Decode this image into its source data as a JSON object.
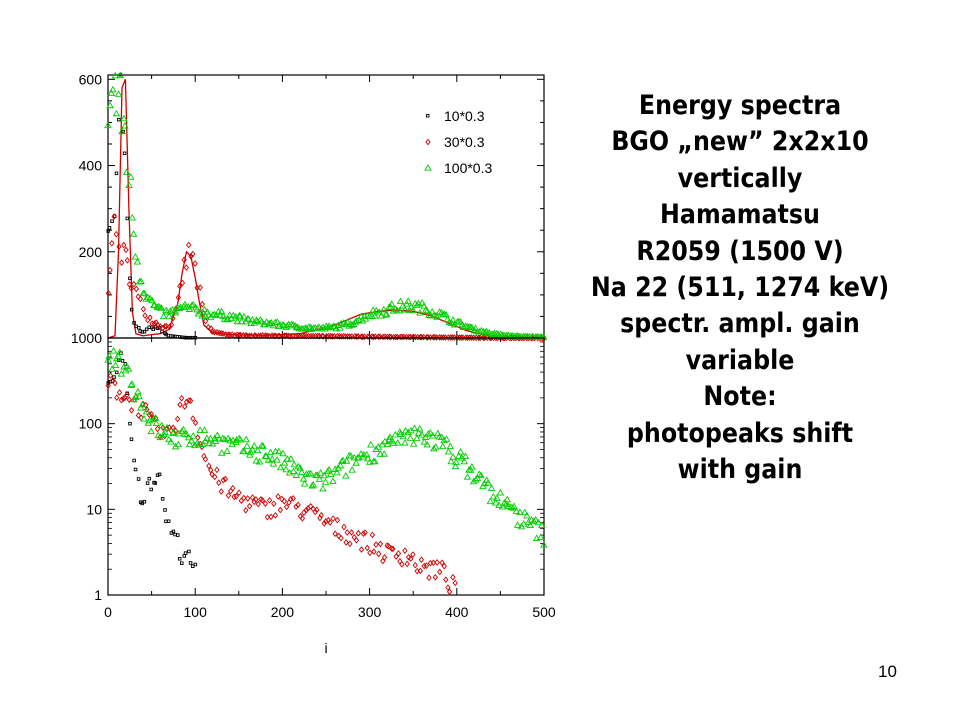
{
  "slide": {
    "number": "10",
    "text_lines": [
      "Energy spectra",
      "BGO „new” 2x2x10",
      "vertically",
      "Hamamatsu",
      "R2059 (1500 V)",
      "Na 22 (511, 1274 keV)",
      "spectr. ampl. gain",
      "variable",
      "Note:",
      "photopeaks shift",
      "with gain"
    ]
  },
  "chart_data": [
    {
      "type": "scatter",
      "scale": "linear",
      "xlabel": "",
      "ylabel": "",
      "xlim": [
        0,
        500
      ],
      "ylim": [
        0,
        610
      ],
      "yticks": [
        200,
        400,
        600
      ],
      "grid": false,
      "legend_position": "top-right",
      "series": [
        {
          "name": "10*0.3",
          "marker": "square",
          "color": "#000000",
          "x": [
            0,
            5,
            10,
            15,
            20,
            25,
            30,
            35,
            40,
            45,
            50,
            55,
            60,
            65,
            70,
            80,
            90,
            100
          ],
          "y": [
            300,
            250,
            350,
            600,
            400,
            120,
            30,
            20,
            12,
            20,
            22,
            25,
            20,
            10,
            5,
            2,
            0,
            0
          ]
        },
        {
          "name": "30*0.3",
          "marker": "diamond",
          "color": "#cc0000",
          "x": [
            0,
            5,
            10,
            15,
            20,
            25,
            30,
            35,
            40,
            45,
            50,
            55,
            60,
            65,
            70,
            75,
            80,
            85,
            90,
            95,
            100,
            105,
            110,
            115,
            120,
            130,
            150,
            200,
            250,
            300,
            350,
            400,
            450,
            500
          ],
          "y": [
            120,
            250,
            230,
            200,
            180,
            150,
            120,
            90,
            70,
            50,
            40,
            35,
            30,
            25,
            30,
            40,
            80,
            140,
            180,
            200,
            160,
            100,
            50,
            25,
            15,
            10,
            6,
            5,
            4,
            3,
            2,
            1,
            0,
            0
          ]
        },
        {
          "name": "100*0.3",
          "marker": "triangle",
          "color": "#00cc00",
          "x": [
            0,
            5,
            10,
            15,
            20,
            25,
            30,
            35,
            40,
            45,
            50,
            60,
            70,
            80,
            90,
            100,
            120,
            140,
            160,
            180,
            200,
            220,
            240,
            260,
            280,
            300,
            320,
            340,
            360,
            380,
            400,
            420,
            440,
            460,
            480,
            500
          ],
          "y": [
            500,
            580,
            560,
            520,
            480,
            350,
            250,
            160,
            120,
            100,
            80,
            60,
            55,
            65,
            70,
            65,
            55,
            50,
            40,
            35,
            30,
            25,
            22,
            25,
            35,
            55,
            65,
            75,
            70,
            55,
            35,
            20,
            10,
            5,
            3,
            2
          ]
        }
      ],
      "fit_curve": {
        "color": "#cc0000",
        "x": [
          0,
          8,
          12,
          16,
          20,
          24,
          28,
          32,
          40,
          50,
          60,
          70,
          80,
          85,
          90,
          95,
          100,
          105,
          110,
          120,
          140,
          180,
          220,
          260,
          290,
          310,
          330,
          350,
          370,
          390,
          410,
          430,
          460,
          500
        ],
        "y": [
          0,
          5,
          200,
          580,
          600,
          300,
          60,
          10,
          5,
          8,
          10,
          20,
          80,
          150,
          200,
          190,
          140,
          80,
          30,
          12,
          8,
          6,
          10,
          30,
          55,
          62,
          65,
          62,
          52,
          35,
          18,
          8,
          2,
          0
        ]
      }
    },
    {
      "type": "scatter",
      "scale": "log",
      "xlabel": "i",
      "ylabel": "",
      "xlim": [
        0,
        500
      ],
      "ylim": [
        1,
        1000
      ],
      "xticks": [
        0,
        100,
        200,
        300,
        400,
        500
      ],
      "yticks": [
        1,
        10,
        100,
        1000
      ],
      "grid": false,
      "series": [
        {
          "name": "10*0.3",
          "marker": "square",
          "color": "#000000",
          "x": [
            0,
            5,
            10,
            15,
            20,
            25,
            30,
            35,
            40,
            45,
            50,
            55,
            60,
            65,
            70,
            75,
            80,
            85,
            90,
            95,
            100
          ],
          "y": [
            300,
            250,
            350,
            600,
            400,
            120,
            30,
            20,
            12,
            20,
            22,
            25,
            20,
            10,
            6,
            5,
            4,
            3,
            3,
            2,
            2
          ]
        },
        {
          "name": "30*0.3",
          "marker": "diamond",
          "color": "#cc0000",
          "x": [
            0,
            10,
            20,
            30,
            40,
            50,
            60,
            70,
            80,
            90,
            95,
            100,
            110,
            120,
            140,
            160,
            180,
            200,
            220,
            240,
            260,
            280,
            300,
            320,
            340,
            360,
            380,
            400
          ],
          "y": [
            300,
            250,
            200,
            180,
            140,
            100,
            80,
            70,
            120,
            200,
            180,
            100,
            40,
            25,
            15,
            12,
            10,
            12,
            10,
            8,
            6,
            5,
            4,
            3,
            3,
            2,
            2,
            1
          ]
        },
        {
          "name": "100*0.3",
          "marker": "triangle",
          "color": "#00cc00",
          "x": [
            0,
            10,
            20,
            30,
            40,
            50,
            60,
            80,
            100,
            120,
            140,
            160,
            180,
            200,
            220,
            240,
            260,
            280,
            300,
            320,
            340,
            360,
            380,
            400,
            420,
            440,
            460,
            480,
            500
          ],
          "y": [
            500,
            580,
            450,
            250,
            150,
            100,
            80,
            65,
            70,
            65,
            55,
            50,
            45,
            35,
            25,
            20,
            25,
            35,
            45,
            55,
            65,
            75,
            60,
            40,
            25,
            15,
            10,
            7,
            5
          ]
        }
      ]
    }
  ]
}
